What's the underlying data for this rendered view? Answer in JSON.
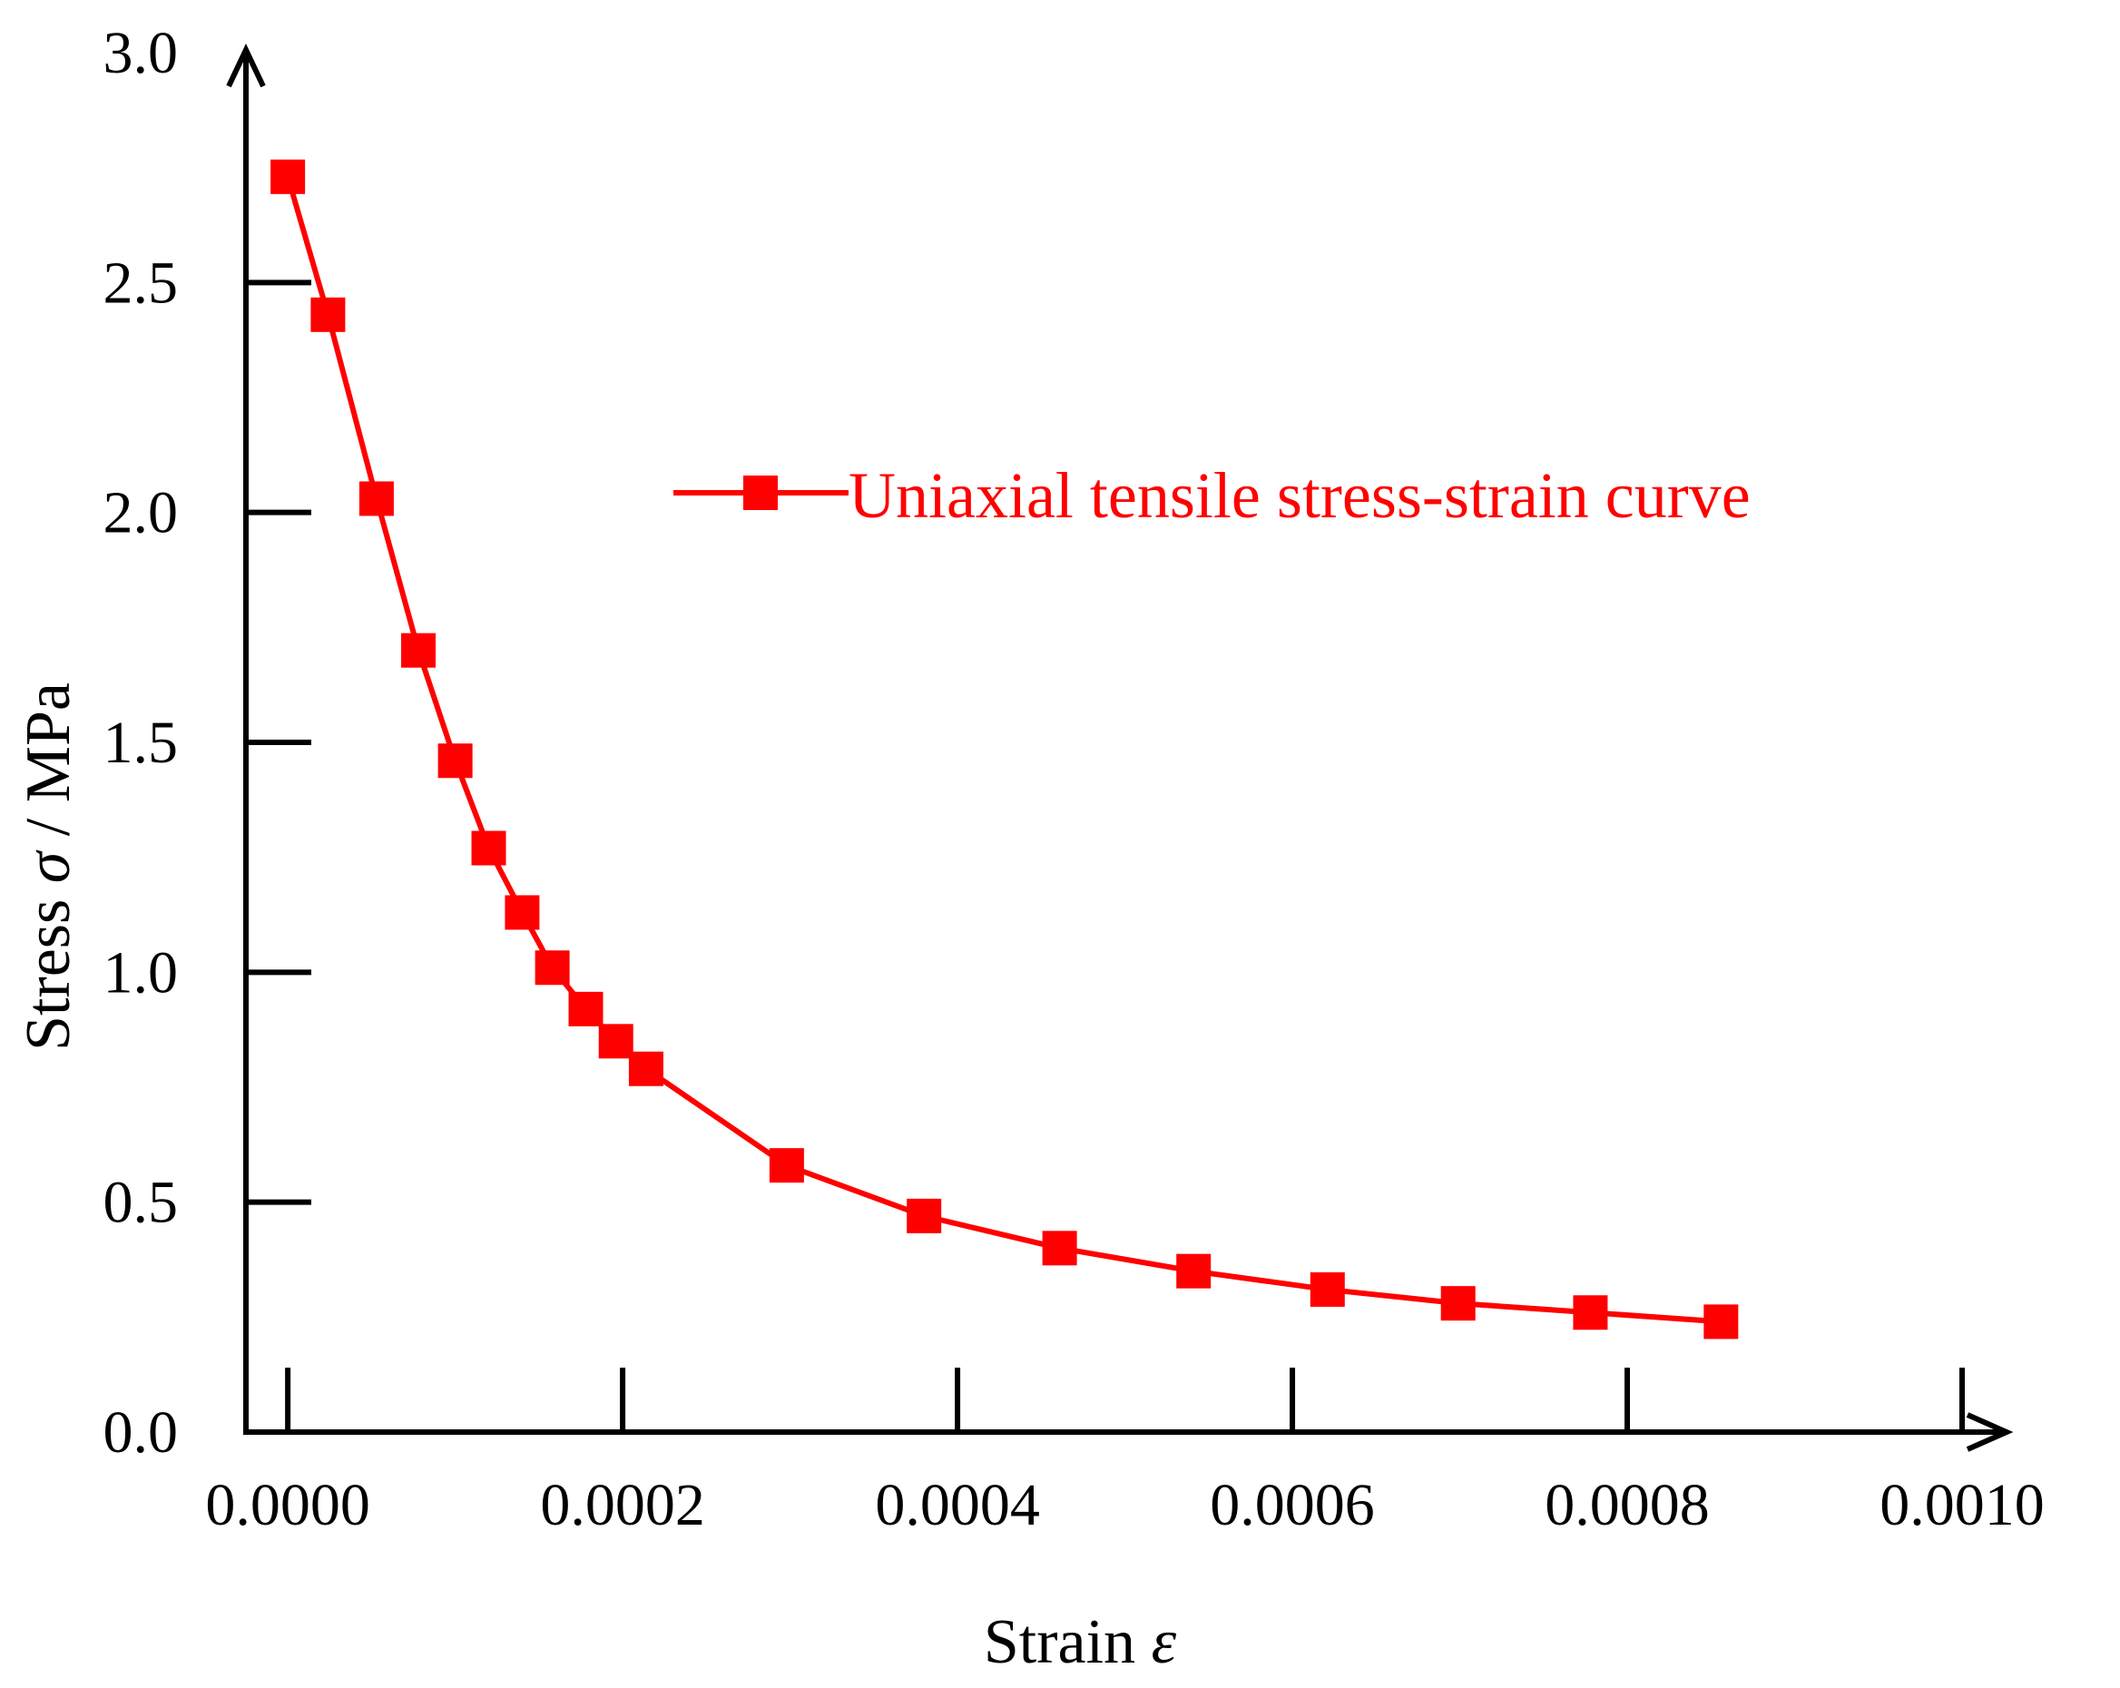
{
  "colors": {
    "axis": "#000000",
    "series": "#ff0000",
    "background": "#ffffff"
  },
  "chart_data": {
    "type": "line",
    "title": "",
    "xlabel": "Strain",
    "xlabel_symbol": "ε",
    "ylabel": "Stress",
    "ylabel_symbol": "σ",
    "ylabel_unit": " / MPa",
    "xlim": [
      -2.5e-05,
      0.001
    ],
    "ylim": [
      0.0,
      3.0
    ],
    "x_ticks": [
      0.0,
      0.0002,
      0.0004,
      0.0006,
      0.0008,
      0.001
    ],
    "x_tick_labels": [
      "0.0000",
      "0.0002",
      "0.0004",
      "0.0006",
      "0.0008",
      "0.0010"
    ],
    "y_ticks": [
      0.0,
      0.5,
      1.0,
      1.5,
      2.0,
      2.5,
      3.0
    ],
    "y_tick_labels": [
      "0.0",
      "0.5",
      "1.0",
      "1.5",
      "2.0",
      "2.5",
      "3.0"
    ],
    "grid": false,
    "legend_position": "top-right",
    "series": [
      {
        "name": "Uniaxial tensile stress-strain curve",
        "marker": "square",
        "x": [
          0.0,
          2.4e-05,
          5.3e-05,
          7.8e-05,
          0.0001,
          0.00012,
          0.00014,
          0.000158,
          0.000178,
          0.000196,
          0.000214,
          0.000298,
          0.00038,
          0.000461,
          0.000541,
          0.000621,
          0.000699,
          0.000778,
          0.000856
        ],
        "y": [
          2.73,
          2.43,
          2.03,
          1.7,
          1.46,
          1.27,
          1.13,
          1.01,
          0.92,
          0.85,
          0.79,
          0.58,
          0.47,
          0.4,
          0.35,
          0.31,
          0.28,
          0.26,
          0.24
        ]
      }
    ]
  }
}
